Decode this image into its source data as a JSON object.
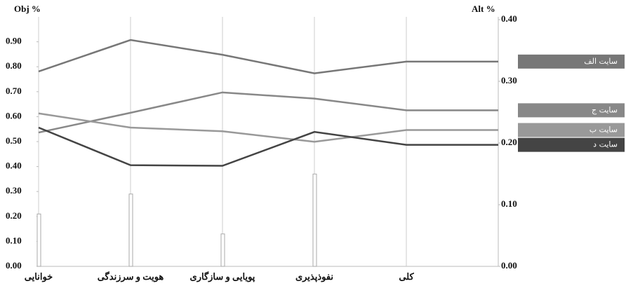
{
  "chart_data": {
    "type": "line",
    "y_label": "Obj %",
    "y2_label": "Alt %",
    "categories": [
      "خوانایی",
      "هویت و سرزندگی",
      "پویایی و سازگاری",
      "نفوذپذیری",
      "کلی"
    ],
    "values": [
      0.21,
      0.29,
      0.13,
      0.37,
      null
    ],
    "bar_color": "#aaaaaa",
    "series": [
      {
        "name": "سایت الف",
        "color": "#777777",
        "axis": "y2",
        "values": [
          0.316,
          0.367,
          0.343,
          0.313,
          0.332
        ]
      },
      {
        "name": "سایت ج",
        "color": "#888888",
        "axis": "y2",
        "values": [
          0.217,
          0.249,
          0.282,
          0.272,
          0.253
        ]
      },
      {
        "name": "سایت ب",
        "color": "#999999",
        "axis": "y2",
        "values": [
          0.248,
          0.225,
          0.219,
          0.202,
          0.221
        ]
      },
      {
        "name": "سایت د",
        "color": "#444444",
        "axis": "y2",
        "values": [
          0.225,
          0.164,
          0.163,
          0.218,
          0.197
        ]
      }
    ],
    "ylim": [
      0,
      1
    ],
    "yticks": [
      {
        "value": 0,
        "label": "0.00"
      },
      {
        "value": 0.1,
        "label": "0.10"
      },
      {
        "value": 0.2,
        "label": "0.20"
      },
      {
        "value": 0.3,
        "label": "0.30"
      },
      {
        "value": 0.4,
        "label": "0.40"
      },
      {
        "value": 0.5,
        "label": "0.50"
      },
      {
        "value": 0.6,
        "label": "0.60"
      },
      {
        "value": 0.7,
        "label": "0.70"
      },
      {
        "value": 0.8,
        "label": "0.80"
      },
      {
        "value": 0.9,
        "label": "0.90"
      }
    ],
    "y2lim": [
      0,
      0.4
    ],
    "y2ticks": [
      {
        "value": 0,
        "label": "0.00"
      },
      {
        "value": 0.1,
        "label": "0.10"
      },
      {
        "value": 0.2,
        "label": "0.20"
      },
      {
        "value": 0.3,
        "label": "0.30"
      },
      {
        "value": 0.4,
        "label": "0.40"
      }
    ]
  }
}
